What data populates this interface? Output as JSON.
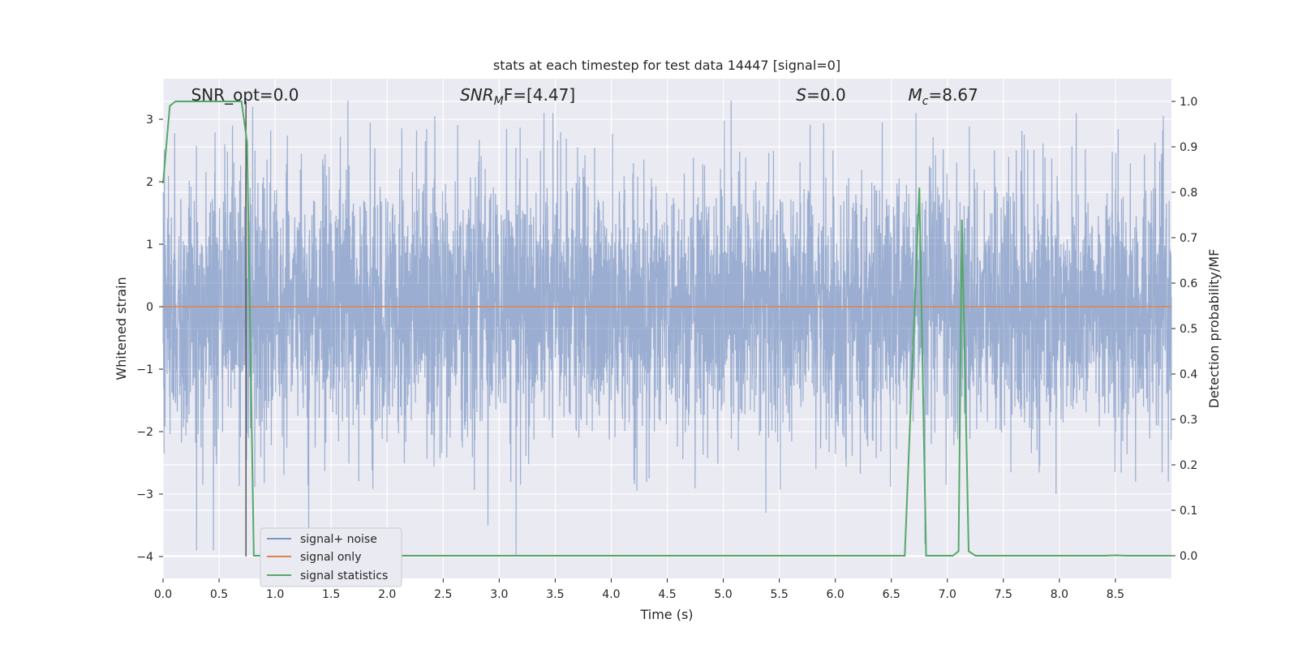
{
  "chart_data": {
    "type": "line",
    "title": "stats at each timestep for test data 14447 [signal=0]",
    "xlabel": "Time (s)",
    "ylabel_left": "Whitened strain",
    "ylabel_right": "Detection probability/MF",
    "xlim": [
      0,
      9.0
    ],
    "ylim_left": [
      -4.35,
      3.65
    ],
    "ylim_right": [
      -0.05,
      1.05
    ],
    "x_ticks": [
      0.0,
      0.5,
      1.0,
      1.5,
      2.0,
      2.5,
      3.0,
      3.5,
      4.0,
      4.5,
      5.0,
      5.5,
      6.0,
      6.5,
      7.0,
      7.5,
      8.0,
      8.5
    ],
    "x_tick_labels": [
      "0.0",
      "0.5",
      "1.0",
      "1.5",
      "2.0",
      "2.5",
      "3.0",
      "3.5",
      "4.0",
      "4.5",
      "5.0",
      "5.5",
      "6.0",
      "6.5",
      "7.0",
      "7.5",
      "8.0",
      "8.5"
    ],
    "y_left_ticks": [
      3,
      2,
      1,
      0,
      -1,
      -2,
      -3,
      -4
    ],
    "y_left_tick_labels": [
      "3",
      "2",
      "1",
      "0",
      "−1",
      "−2",
      "−3",
      "−4"
    ],
    "y_right_ticks": [
      1.0,
      0.9,
      0.8,
      0.7,
      0.6,
      0.5,
      0.4,
      0.3,
      0.2,
      0.1,
      0.0
    ],
    "y_right_tick_labels": [
      "1.0",
      "0.9",
      "0.8",
      "0.7",
      "0.6",
      "0.5",
      "0.4",
      "0.3",
      "0.2",
      "0.1",
      "0.0"
    ],
    "grid": true,
    "legend_position": "lower-left",
    "series": [
      {
        "name": "signal+ noise",
        "axis": "left",
        "color": "#4c72b0",
        "opacity": 0.5,
        "description_kind": "dense noise trace",
        "peaks": [
          [
            0.3,
            -3.9
          ],
          [
            0.45,
            -3.9
          ],
          [
            0.55,
            2.6
          ],
          [
            0.62,
            2.9
          ],
          [
            0.8,
            3.2
          ],
          [
            1.3,
            -3.9
          ],
          [
            1.65,
            3.3
          ],
          [
            2.9,
            -3.5
          ],
          [
            3.15,
            -4.0
          ],
          [
            3.4,
            3.1
          ],
          [
            3.48,
            3.1
          ],
          [
            5.07,
            3.3
          ],
          [
            5.38,
            -3.3
          ],
          [
            6.72,
            3.1
          ],
          [
            6.8,
            -3.8
          ],
          [
            7.97,
            -3.0
          ],
          [
            8.15,
            3.1
          ],
          [
            8.68,
            -2.8
          ]
        ]
      },
      {
        "name": "signal only",
        "axis": "left",
        "color": "#dd8452",
        "x": [
          0.0,
          9.0
        ],
        "y": [
          0.0,
          0.0
        ]
      },
      {
        "name": "signal statistics",
        "axis": "right",
        "color": "#55a868",
        "x": [
          0.0,
          0.06,
          0.11,
          0.7,
          0.75,
          0.81,
          1.0,
          2.0,
          3.0,
          4.0,
          5.0,
          6.0,
          6.62,
          6.75,
          6.81,
          7.05,
          7.1,
          7.13,
          7.19,
          7.25,
          8.4,
          8.5,
          8.6,
          9.0
        ],
        "y": [
          0.82,
          0.99,
          1.0,
          1.0,
          0.91,
          0.0,
          0.0,
          0.0,
          0.0,
          0.0,
          0.0,
          0.0,
          0.0,
          0.81,
          0.0,
          0.0,
          0.01,
          0.74,
          0.01,
          0.0,
          0.0,
          0.001,
          0.0,
          0.0
        ]
      }
    ],
    "vertical_line": {
      "x": 0.74,
      "color": "#555555"
    },
    "annotations": [
      {
        "text": "SNR_opt=0.0",
        "x": 0.2,
        "style": "plain"
      },
      {
        "text": "SNR",
        "sub": "M",
        "rest": "F=[4.47]",
        "x": 2.6,
        "style": "math"
      },
      {
        "text": "S",
        "sub": "",
        "rest": "=0.0",
        "x": 5.6,
        "style": "math"
      },
      {
        "text": "M",
        "sub": "c",
        "rest": "=8.67",
        "x": 6.6,
        "style": "math"
      }
    ]
  },
  "colors": {
    "plot_background": "#eaeaf2",
    "grid": "#ffffff",
    "text": "#262626",
    "legend_background": "#eaeaf2",
    "legend_border": "#cccccc"
  }
}
